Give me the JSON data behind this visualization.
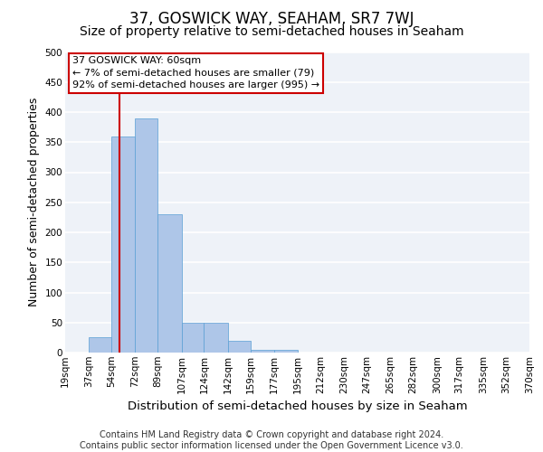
{
  "title": "37, GOSWICK WAY, SEAHAM, SR7 7WJ",
  "subtitle": "Size of property relative to semi-detached houses in Seaham",
  "xlabel": "Distribution of semi-detached houses by size in Seaham",
  "ylabel": "Number of semi-detached properties",
  "bin_labels": [
    "19sqm",
    "37sqm",
    "54sqm",
    "72sqm",
    "89sqm",
    "107sqm",
    "124sqm",
    "142sqm",
    "159sqm",
    "177sqm",
    "195sqm",
    "212sqm",
    "230sqm",
    "247sqm",
    "265sqm",
    "282sqm",
    "300sqm",
    "317sqm",
    "335sqm",
    "352sqm",
    "370sqm"
  ],
  "bin_edges": [
    19,
    37,
    54,
    72,
    89,
    107,
    124,
    142,
    159,
    177,
    195,
    212,
    230,
    247,
    265,
    282,
    300,
    317,
    335,
    352,
    370
  ],
  "bar_heights": [
    0,
    25,
    360,
    390,
    230,
    50,
    50,
    20,
    5,
    5,
    0,
    0,
    0,
    0,
    0,
    0,
    0,
    0,
    0,
    0
  ],
  "bar_color": "#aec6e8",
  "bar_edge_color": "#5a9fd4",
  "property_size": 60,
  "property_line_color": "#cc0000",
  "annotation_line1": "37 GOSWICK WAY: 60sqm",
  "annotation_line2": "← 7% of semi-detached houses are smaller (79)",
  "annotation_line3": "92% of semi-detached houses are larger (995) →",
  "annotation_box_color": "#cc0000",
  "ylim": [
    0,
    500
  ],
  "yticks": [
    0,
    50,
    100,
    150,
    200,
    250,
    300,
    350,
    400,
    450,
    500
  ],
  "footer_line1": "Contains HM Land Registry data © Crown copyright and database right 2024.",
  "footer_line2": "Contains public sector information licensed under the Open Government Licence v3.0.",
  "bg_color": "#eef2f8",
  "grid_color": "#ffffff",
  "title_fontsize": 12,
  "subtitle_fontsize": 10,
  "axis_label_fontsize": 9,
  "tick_fontsize": 7.5,
  "annotation_fontsize": 8,
  "footer_fontsize": 7
}
